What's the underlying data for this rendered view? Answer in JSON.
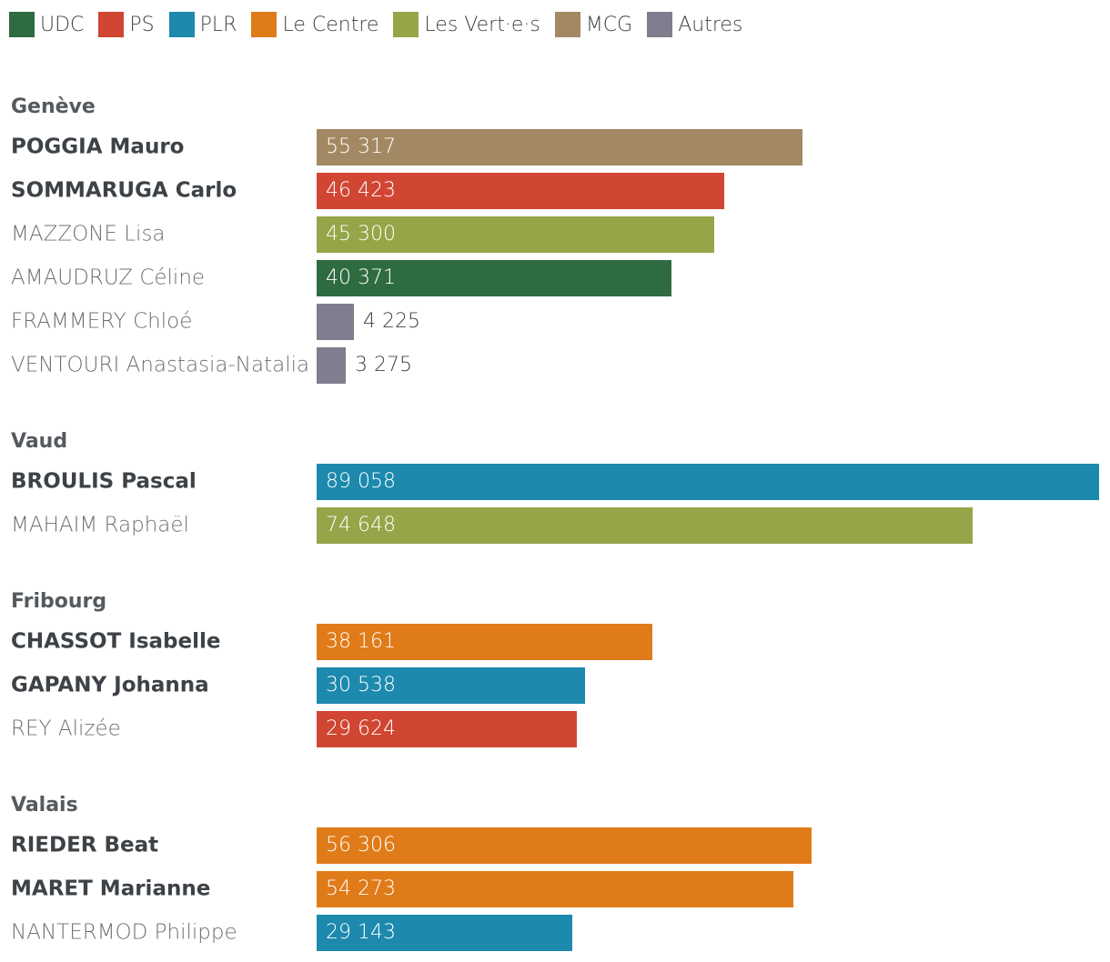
{
  "legend": [
    {
      "name": "UDC",
      "color": "#2f6b41"
    },
    {
      "name": "PS",
      "color": "#d04632"
    },
    {
      "name": "PLR",
      "color": "#1c89ad"
    },
    {
      "name": "Le Centre",
      "color": "#e07b1a"
    },
    {
      "name": "Les Vert·e·s",
      "color": "#94a647"
    },
    {
      "name": "MCG",
      "color": "#a38963"
    },
    {
      "name": "Autres",
      "color": "#7f7e8e"
    }
  ],
  "chart_data": {
    "type": "bar",
    "orientation": "horizontal",
    "title": "",
    "xlim": [
      0,
      89058
    ],
    "groups": [
      {
        "region": "Genève",
        "candidates": [
          {
            "name": "POGGIA Mauro",
            "party": "MCG",
            "value": 55317,
            "label": "55 317",
            "elected": true
          },
          {
            "name": "SOMMARUGA Carlo",
            "party": "PS",
            "value": 46423,
            "label": "46 423",
            "elected": true
          },
          {
            "name": "MAZZONE Lisa",
            "party": "Les Vert·e·s",
            "value": 45300,
            "label": "45 300",
            "elected": false
          },
          {
            "name": "AMAUDRUZ Céline",
            "party": "UDC",
            "value": 40371,
            "label": "40 371",
            "elected": false
          },
          {
            "name": "FRAMMERY Chloé",
            "party": "Autres",
            "value": 4225,
            "label": "4 225",
            "elected": false
          },
          {
            "name": "VENTOURI Anastasia-Natalia",
            "party": "Autres",
            "value": 3275,
            "label": "3 275",
            "elected": false
          }
        ]
      },
      {
        "region": "Vaud",
        "candidates": [
          {
            "name": "BROULIS Pascal",
            "party": "PLR",
            "value": 89058,
            "label": "89 058",
            "elected": true
          },
          {
            "name": "MAHAIM Raphaël",
            "party": "Les Vert·e·s",
            "value": 74648,
            "label": "74 648",
            "elected": false
          }
        ]
      },
      {
        "region": "Fribourg",
        "candidates": [
          {
            "name": "CHASSOT Isabelle",
            "party": "Le Centre",
            "value": 38161,
            "label": "38 161",
            "elected": true
          },
          {
            "name": "GAPANY Johanna",
            "party": "PLR",
            "value": 30538,
            "label": "30 538",
            "elected": true
          },
          {
            "name": "REY Alizée",
            "party": "PS",
            "value": 29624,
            "label": "29 624",
            "elected": false
          }
        ]
      },
      {
        "region": "Valais",
        "candidates": [
          {
            "name": "RIEDER Beat",
            "party": "Le Centre",
            "value": 56306,
            "label": "56 306",
            "elected": true
          },
          {
            "name": "MARET Marianne",
            "party": "Le Centre",
            "value": 54273,
            "label": "54 273",
            "elected": true
          },
          {
            "name": "NANTERMOD Philippe",
            "party": "PLR",
            "value": 29143,
            "label": "29 143",
            "elected": false
          }
        ]
      }
    ]
  }
}
